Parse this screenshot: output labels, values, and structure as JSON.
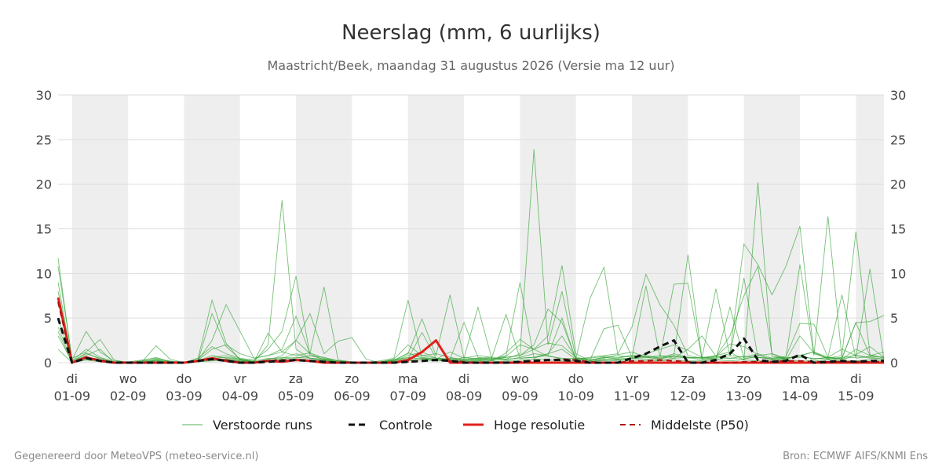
{
  "chart_data": {
    "type": "line",
    "title": "Neerslag (mm, 6 uurlijks)",
    "subtitle": "Maastricht/Beek, maandag 31 augustus 2026 (Versie ma 12 uur)",
    "ylim": [
      0,
      30
    ],
    "yticks": [
      0,
      5,
      10,
      15,
      20,
      25,
      30
    ],
    "x_unit": "6-hourly steps from 31-08-2026 18:00",
    "x_range": [
      0,
      59
    ],
    "x_ticks": [
      {
        "x": 1,
        "day": "di",
        "date": "01-09"
      },
      {
        "x": 5,
        "day": "wo",
        "date": "02-09"
      },
      {
        "x": 9,
        "day": "do",
        "date": "03-09"
      },
      {
        "x": 13,
        "day": "vr",
        "date": "04-09"
      },
      {
        "x": 17,
        "day": "za",
        "date": "05-09"
      },
      {
        "x": 21,
        "day": "zo",
        "date": "06-09"
      },
      {
        "x": 25,
        "day": "ma",
        "date": "07-09"
      },
      {
        "x": 29,
        "day": "di",
        "date": "08-09"
      },
      {
        "x": 33,
        "day": "wo",
        "date": "09-09"
      },
      {
        "x": 37,
        "day": "do",
        "date": "10-09"
      },
      {
        "x": 41,
        "day": "vr",
        "date": "11-09"
      },
      {
        "x": 45,
        "day": "za",
        "date": "12-09"
      },
      {
        "x": 49,
        "day": "zo",
        "date": "13-09"
      },
      {
        "x": 53,
        "day": "ma",
        "date": "14-09"
      },
      {
        "x": 57,
        "day": "di",
        "date": "15-09"
      }
    ],
    "shaded_days": [
      [
        1,
        5
      ],
      [
        9,
        13
      ],
      [
        17,
        21
      ],
      [
        25,
        29
      ],
      [
        33,
        37
      ],
      [
        41,
        45
      ],
      [
        49,
        53
      ],
      [
        57,
        59
      ]
    ],
    "grid": true,
    "legend_position": "bottom",
    "legend": {
      "ensemble": "Verstoorde runs",
      "control": "Controle",
      "hires": "Hoge resolutie",
      "p50": "Middelste (P50)"
    },
    "colors": {
      "ensemble": "#2ca02c",
      "control": "#111111",
      "hires": "#e0201b",
      "p50": "#b01010",
      "shade": "#eeeeee",
      "grid": "#dddddd"
    },
    "series": [
      {
        "name": "Controle",
        "style": "control",
        "values": [
          5.0,
          0,
          0.5,
          0.2,
          0,
          0,
          0,
          0,
          0,
          0,
          0.2,
          0.4,
          0.2,
          0,
          0,
          0.1,
          0.2,
          0.3,
          0.2,
          0.1,
          0,
          0,
          0,
          0,
          0,
          0.1,
          0.2,
          0.3,
          0.2,
          0,
          0,
          0,
          0,
          0.1,
          0.2,
          0.3,
          0.3,
          0.2,
          0,
          0,
          0,
          0.5,
          1.0,
          1.8,
          2.5,
          0,
          0,
          0.3,
          1.0,
          2.7,
          0.3,
          0.1,
          0.2,
          0.9,
          0,
          0.1,
          0.2,
          0.1,
          0.2,
          0.2
        ]
      },
      {
        "name": "Hoge resolutie",
        "style": "hires",
        "values": [
          7.3,
          0,
          0.6,
          0.2,
          0,
          0,
          0,
          0,
          0,
          0,
          0.2,
          0.5,
          0.2,
          0,
          0,
          0.2,
          0.1,
          0.3,
          0.2,
          0,
          0,
          0,
          0,
          0,
          0,
          0.3,
          1.2,
          2.5,
          0,
          0,
          0,
          0,
          0,
          0,
          0,
          0,
          0,
          0,
          0,
          0,
          0,
          0,
          0,
          0,
          0,
          0,
          0,
          0,
          0,
          0,
          0,
          0,
          0,
          0,
          0,
          0,
          0,
          0,
          0,
          0
        ]
      },
      {
        "name": "Middelste (P50)",
        "style": "p50",
        "values": [
          6.8,
          0,
          0.6,
          0.3,
          0,
          0,
          0,
          0,
          0,
          0,
          0.2,
          0.4,
          0.3,
          0,
          0,
          0.2,
          0.3,
          0.3,
          0.2,
          0.1,
          0,
          0,
          0,
          0,
          0,
          0.1,
          0.2,
          0.3,
          0.2,
          0.1,
          0,
          0,
          0,
          0.1,
          0.2,
          0.3,
          0.4,
          0.3,
          0.1,
          0,
          0,
          0.2,
          0.2,
          0.3,
          0.2,
          0.1,
          0,
          0,
          0,
          0.1,
          0.1,
          0.1,
          0.2,
          0.2,
          0.1,
          0.1,
          0.1,
          0.1,
          0.1,
          0.1
        ]
      },
      {
        "style": "ensemble",
        "values": [
          11.7,
          0.2,
          1.5,
          0.6,
          0.1,
          0,
          0.2,
          0.3,
          0.1,
          0,
          0.5,
          7.0,
          2.2,
          0.3,
          0.1,
          3.3,
          1.2,
          0.8,
          1.1,
          0.5,
          0.2,
          0,
          0,
          0.1,
          0.3,
          0.5,
          0.8,
          1.0,
          0.6,
          0.3,
          0.2,
          0.4,
          0.7,
          2.0,
          1.5,
          2.2,
          1.9,
          0.6,
          0.3,
          0.2,
          0.4,
          0.5,
          1.0,
          1.5,
          2.0,
          1.4,
          0.6,
          0.7,
          2.1,
          1.8,
          0.9,
          0.3,
          0.4,
          0.8,
          1.2,
          0.6,
          0.4,
          1.5,
          0.8,
          1.2
        ]
      },
      {
        "style": "ensemble",
        "values": [
          10.8,
          0.5,
          1.2,
          2.6,
          0.3,
          0,
          0.1,
          1.9,
          0.4,
          0,
          0.3,
          2.5,
          6.5,
          3.5,
          0.5,
          0.8,
          1.5,
          5.2,
          1.0,
          0.3,
          0.1,
          0,
          0,
          0,
          0.2,
          1.1,
          0.5,
          0.3,
          0.2,
          0.6,
          0.4,
          0.2,
          1.1,
          2.6,
          1.5,
          3.0,
          10.9,
          1.0,
          0.2,
          0.5,
          0.9,
          1.2,
          0.6,
          0.8,
          0.5,
          1.5,
          3.0,
          0.7,
          0.5,
          0.4,
          0.8,
          1.0,
          0.3,
          3.0,
          1.1,
          0.5,
          0.3,
          0.9,
          1.8,
          0.6
        ]
      },
      {
        "style": "ensemble",
        "values": [
          9.0,
          0,
          1.1,
          0.4,
          0,
          0,
          0.1,
          0.4,
          0.2,
          0,
          0.2,
          5.5,
          1.8,
          0.4,
          0.1,
          2.0,
          18.2,
          1.5,
          0.5,
          0.2,
          0.1,
          0,
          0,
          0.1,
          0.4,
          2.0,
          0.8,
          0.5,
          0.3,
          0.2,
          0.5,
          0.6,
          0.4,
          1.0,
          23.9,
          2.0,
          8.0,
          0.5,
          0.3,
          3.8,
          4.2,
          0.6,
          0.8,
          0.5,
          1.0,
          0.6,
          0.5,
          0.8,
          1.2,
          0.3,
          20.2,
          0.7,
          0.5,
          0.8,
          0.4,
          0.6,
          1.5,
          0.8,
          0.6,
          0.4
        ]
      },
      {
        "style": "ensemble",
        "values": [
          8.0,
          0.3,
          3.5,
          1.2,
          0.2,
          0.1,
          0.3,
          0.5,
          0.1,
          0,
          0.5,
          1.8,
          1.0,
          0.5,
          0.3,
          1.5,
          3.5,
          9.7,
          0.8,
          0.4,
          0.2,
          0.1,
          0,
          0.2,
          0.5,
          7.0,
          0.6,
          0.4,
          1.2,
          0.5,
          6.2,
          0.4,
          0.6,
          0.8,
          2.0,
          6.0,
          4.5,
          0.4,
          0.6,
          0.8,
          1.0,
          4.0,
          9.9,
          6.5,
          4.2,
          0.8,
          0.5,
          0.7,
          3.0,
          7.5,
          10.8,
          1.0,
          0.5,
          0.8,
          1.2,
          0.4,
          0.5,
          4.5,
          0.8,
          0.6
        ]
      },
      {
        "style": "ensemble",
        "values": [
          7.0,
          0.1,
          0.8,
          1.5,
          0,
          0,
          0.2,
          0.6,
          0.1,
          0,
          0.3,
          1.5,
          2.0,
          1.0,
          0.5,
          0.8,
          1.2,
          2.5,
          5.5,
          1.0,
          2.4,
          2.8,
          0.4,
          0,
          0.3,
          1.0,
          4.9,
          0.8,
          7.6,
          0.5,
          0.8,
          0.6,
          5.4,
          0.5,
          0.6,
          1.0,
          3.0,
          0.5,
          7.2,
          10.7,
          0.8,
          0.6,
          8.6,
          0.7,
          0.8,
          12.1,
          0.5,
          0.6,
          1.0,
          13.3,
          11.0,
          7.6,
          10.8,
          15.3,
          1.0,
          0.5,
          0.8,
          14.7,
          0.9,
          0.5
        ]
      },
      {
        "style": "ensemble",
        "values": [
          5.0,
          0.2,
          1.0,
          0.5,
          0.1,
          0,
          0,
          0.2,
          0,
          0,
          0.1,
          0.5,
          0.6,
          0.4,
          0.1,
          0.3,
          0.8,
          2.5,
          1.0,
          8.5,
          0.3,
          0.1,
          0,
          0,
          0.2,
          0.8,
          1.2,
          0.5,
          0.4,
          4.5,
          0.6,
          0.4,
          0.8,
          9.0,
          0.5,
          1.0,
          1.5,
          0.4,
          0.3,
          0.6,
          0.5,
          0.8,
          0.7,
          0.6,
          8.8,
          8.9,
          0.4,
          0.5,
          0.8,
          0.6,
          1.0,
          0.5,
          0.6,
          11.0,
          0.8,
          16.4,
          0.5,
          0.6,
          10.5,
          0.4
        ]
      },
      {
        "style": "ensemble",
        "values": [
          4.0,
          0.1,
          0.5,
          0.3,
          0,
          0,
          0,
          0.1,
          0,
          0,
          0.1,
          0.3,
          0.4,
          0.2,
          0.1,
          0.2,
          0.5,
          1.0,
          0.5,
          0.3,
          0.1,
          0,
          0,
          0,
          0.1,
          0.3,
          0.5,
          0.4,
          0.3,
          0.2,
          0.3,
          0.2,
          0.4,
          0.5,
          0.6,
          0.8,
          5.0,
          0.3,
          0.2,
          0.4,
          0.3,
          0.5,
          0.4,
          0.3,
          0.5,
          0.6,
          0.3,
          0.4,
          6.2,
          0.5,
          0.6,
          0.4,
          0.5,
          0.8,
          0.4,
          0.6,
          0.5,
          4.5,
          4.6,
          5.3
        ]
      },
      {
        "style": "ensemble",
        "values": [
          3.5,
          0,
          0.6,
          0.2,
          0,
          0,
          0,
          0.3,
          0,
          0,
          0.2,
          0.8,
          0.5,
          0.3,
          0.1,
          0.4,
          0.6,
          0.5,
          0.8,
          0.6,
          0.2,
          0,
          0,
          0,
          0.3,
          0.6,
          0.4,
          0.3,
          0.5,
          0.4,
          0.5,
          0.3,
          0.6,
          0.8,
          1.5,
          0.7,
          0.5,
          0.4,
          0.5,
          0.7,
          0.6,
          0.8,
          0.6,
          0.5,
          0.7,
          0.6,
          0.5,
          8.3,
          0.7,
          9.5,
          0.6,
          0.5,
          0.7,
          4.4,
          4.3,
          0.6,
          7.6,
          0.5,
          0.7,
          0.6
        ]
      },
      {
        "style": "ensemble",
        "values": [
          3.0,
          0.1,
          0.4,
          0.2,
          0,
          0,
          0.1,
          0.2,
          0,
          0,
          0.1,
          0.6,
          0.8,
          0.4,
          0.2,
          0.5,
          0.4,
          0.6,
          0.5,
          0.4,
          0.1,
          0,
          0,
          0,
          0.2,
          0.4,
          3.4,
          0.5,
          0.4,
          0.3,
          0.4,
          0.5,
          0.3,
          0.6,
          1.0,
          0.8,
          0.4,
          0.5,
          0.3,
          0.6,
          0.4,
          0.5,
          0.6,
          0.4,
          0.8,
          0.5,
          0.6,
          0.4,
          0.5,
          0.7,
          0.6,
          0.4,
          0.5,
          0.6,
          0.5,
          0.4,
          0.6,
          0.8,
          0.5,
          0.4
        ]
      },
      {
        "style": "ensemble",
        "values": [
          1.5,
          0,
          0.3,
          0.1,
          0,
          0,
          0,
          0.1,
          0,
          0,
          0.1,
          0.2,
          0.3,
          0.2,
          0,
          0.2,
          0.3,
          0.4,
          0.3,
          0.2,
          0,
          0,
          0,
          0,
          0.1,
          0.2,
          0.3,
          0.2,
          0.2,
          0.1,
          0.2,
          0.1,
          0.2,
          0.3,
          0.4,
          0.3,
          0.2,
          0.2,
          0.1,
          0.3,
          0.2,
          0.3,
          0.2,
          0.2,
          0.3,
          0.2,
          0.2,
          0.3,
          0.2,
          0.3,
          0.2,
          0.2,
          0.3,
          0.2,
          0.2,
          0.3,
          0.2,
          0.2,
          0.3,
          0.2
        ]
      }
    ]
  },
  "footer": {
    "left": "Gegenereerd door MeteoVPS (meteo-service.nl)",
    "right": "Bron: ECMWF AIFS/KNMI Ens"
  }
}
